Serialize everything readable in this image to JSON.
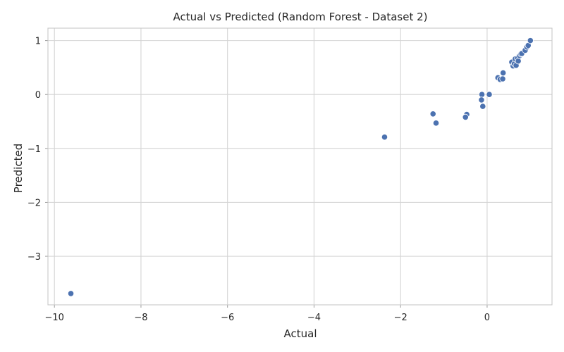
{
  "chart_data": {
    "type": "scatter",
    "title": "Actual vs Predicted (Random Forest - Dataset 2)",
    "xlabel": "Actual",
    "ylabel": "Predicted",
    "xlim": [
      -10.15,
      1.5
    ],
    "ylim": [
      -3.9,
      1.23
    ],
    "xticks": [
      -10,
      -8,
      -6,
      -4,
      -2,
      0
    ],
    "yticks": [
      -3,
      -2,
      -1,
      0,
      1
    ],
    "xtick_labels": [
      "−10",
      "−8",
      "−6",
      "−4",
      "−2",
      "0"
    ],
    "ytick_labels": [
      "−3",
      "−2",
      "−1",
      "0",
      "1"
    ],
    "grid": true,
    "point_color": "#4C72B0",
    "points": [
      {
        "x": -9.62,
        "y": -3.69
      },
      {
        "x": -2.37,
        "y": -0.79
      },
      {
        "x": -1.25,
        "y": -0.36
      },
      {
        "x": -1.18,
        "y": -0.53
      },
      {
        "x": -0.47,
        "y": -0.37
      },
      {
        "x": -0.5,
        "y": -0.42
      },
      {
        "x": -0.12,
        "y": 0.0
      },
      {
        "x": -0.13,
        "y": -0.1
      },
      {
        "x": -0.1,
        "y": -0.22
      },
      {
        "x": 0.05,
        "y": 0.0
      },
      {
        "x": 0.25,
        "y": 0.31
      },
      {
        "x": 0.3,
        "y": 0.28
      },
      {
        "x": 0.36,
        "y": 0.29
      },
      {
        "x": 0.37,
        "y": 0.4
      },
      {
        "x": 0.57,
        "y": 0.6
      },
      {
        "x": 0.6,
        "y": 0.53
      },
      {
        "x": 0.63,
        "y": 0.57
      },
      {
        "x": 0.65,
        "y": 0.66
      },
      {
        "x": 0.67,
        "y": 0.54
      },
      {
        "x": 0.7,
        "y": 0.67
      },
      {
        "x": 0.72,
        "y": 0.62
      },
      {
        "x": 0.75,
        "y": 0.72
      },
      {
        "x": 0.78,
        "y": 0.75
      },
      {
        "x": 0.8,
        "y": 0.76
      },
      {
        "x": 0.88,
        "y": 0.82
      },
      {
        "x": 0.92,
        "y": 0.88
      },
      {
        "x": 0.95,
        "y": 0.91
      },
      {
        "x": 1.0,
        "y": 1.0
      }
    ]
  }
}
